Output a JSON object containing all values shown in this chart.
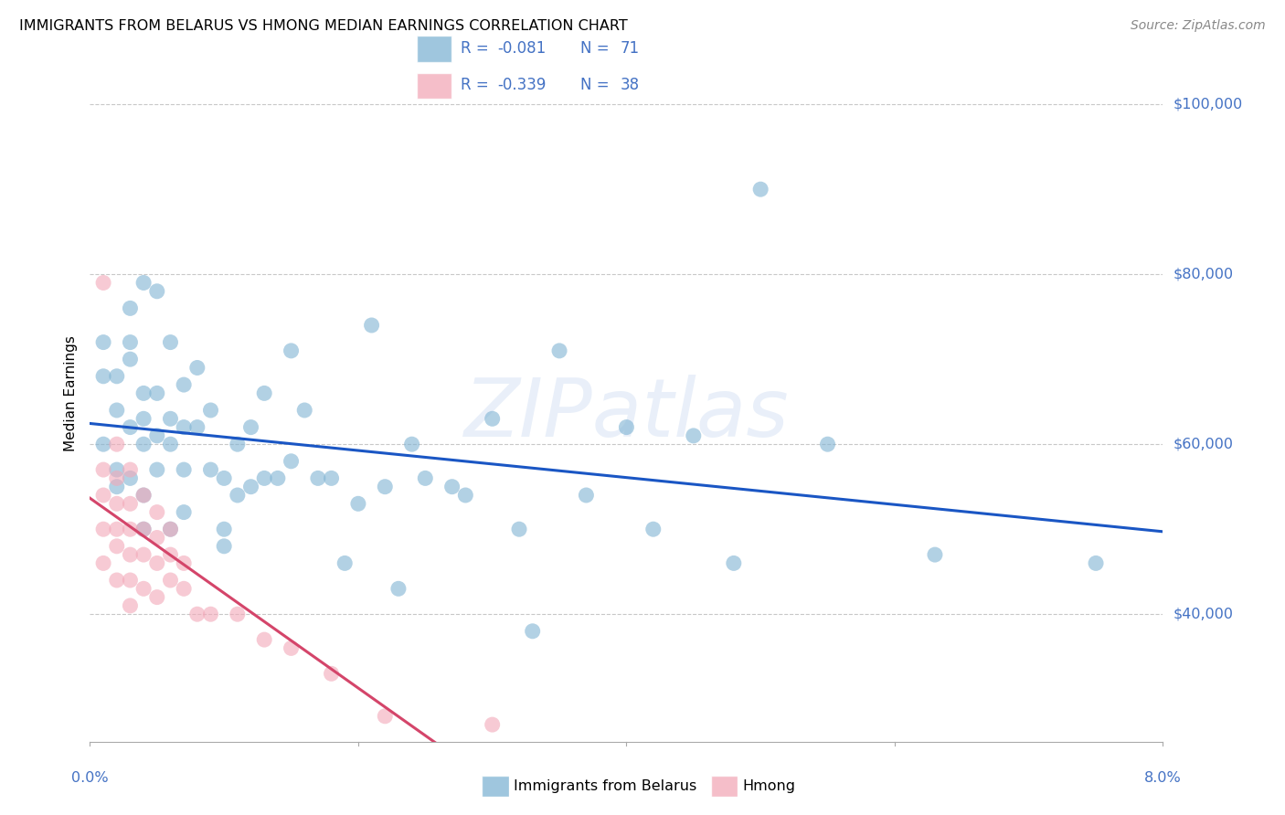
{
  "title": "IMMIGRANTS FROM BELARUS VS HMONG MEDIAN EARNINGS CORRELATION CHART",
  "source": "Source: ZipAtlas.com",
  "ylabel": "Median Earnings",
  "y_ticks": [
    40000,
    60000,
    80000,
    100000
  ],
  "y_tick_labels": [
    "$40,000",
    "$60,000",
    "$80,000",
    "$100,000"
  ],
  "x_min": 0.0,
  "x_max": 0.08,
  "y_min": 25000,
  "y_max": 107000,
  "watermark": "ZIPatlas",
  "R_belarus": -0.081,
  "N_belarus": 71,
  "R_hmong": -0.339,
  "N_hmong": 38,
  "legend_label_belarus": "Immigrants from Belarus",
  "legend_label_hmong": "Hmong",
  "blue_line_color": "#1a56c4",
  "pink_line_color": "#d4456a",
  "pink_dashed_color": "#e0a0b8",
  "scatter_blue": "#7fb3d3",
  "scatter_pink": "#f2a8b8",
  "axis_label_color": "#4472c4",
  "legend_text_color": "#4472c4",
  "grid_color": "#c8c8c8",
  "belarus_x": [
    0.001,
    0.001,
    0.001,
    0.002,
    0.002,
    0.002,
    0.002,
    0.003,
    0.003,
    0.003,
    0.003,
    0.003,
    0.004,
    0.004,
    0.004,
    0.004,
    0.004,
    0.004,
    0.005,
    0.005,
    0.005,
    0.005,
    0.006,
    0.006,
    0.006,
    0.006,
    0.007,
    0.007,
    0.007,
    0.007,
    0.008,
    0.008,
    0.009,
    0.009,
    0.01,
    0.01,
    0.01,
    0.011,
    0.011,
    0.012,
    0.012,
    0.013,
    0.013,
    0.014,
    0.015,
    0.015,
    0.016,
    0.017,
    0.018,
    0.019,
    0.02,
    0.021,
    0.022,
    0.023,
    0.024,
    0.025,
    0.027,
    0.028,
    0.03,
    0.032,
    0.033,
    0.035,
    0.037,
    0.04,
    0.042,
    0.045,
    0.048,
    0.05,
    0.055,
    0.063,
    0.075
  ],
  "belarus_y": [
    68000,
    60000,
    72000,
    55000,
    64000,
    68000,
    57000,
    76000,
    70000,
    72000,
    62000,
    56000,
    79000,
    66000,
    63000,
    60000,
    54000,
    50000,
    78000,
    66000,
    61000,
    57000,
    72000,
    63000,
    60000,
    50000,
    67000,
    62000,
    57000,
    52000,
    69000,
    62000,
    64000,
    57000,
    56000,
    50000,
    48000,
    60000,
    54000,
    62000,
    55000,
    66000,
    56000,
    56000,
    71000,
    58000,
    64000,
    56000,
    56000,
    46000,
    53000,
    74000,
    55000,
    43000,
    60000,
    56000,
    55000,
    54000,
    63000,
    50000,
    38000,
    71000,
    54000,
    62000,
    50000,
    61000,
    46000,
    90000,
    60000,
    47000,
    46000
  ],
  "hmong_x": [
    0.001,
    0.001,
    0.001,
    0.001,
    0.001,
    0.002,
    0.002,
    0.002,
    0.002,
    0.002,
    0.002,
    0.003,
    0.003,
    0.003,
    0.003,
    0.003,
    0.003,
    0.004,
    0.004,
    0.004,
    0.004,
    0.005,
    0.005,
    0.005,
    0.005,
    0.006,
    0.006,
    0.006,
    0.007,
    0.007,
    0.008,
    0.009,
    0.011,
    0.013,
    0.015,
    0.018,
    0.022,
    0.03
  ],
  "hmong_y": [
    79000,
    57000,
    54000,
    50000,
    46000,
    60000,
    56000,
    53000,
    50000,
    48000,
    44000,
    57000,
    53000,
    50000,
    47000,
    44000,
    41000,
    54000,
    50000,
    47000,
    43000,
    52000,
    49000,
    46000,
    42000,
    50000,
    47000,
    44000,
    46000,
    43000,
    40000,
    40000,
    40000,
    37000,
    36000,
    33000,
    28000,
    27000
  ]
}
